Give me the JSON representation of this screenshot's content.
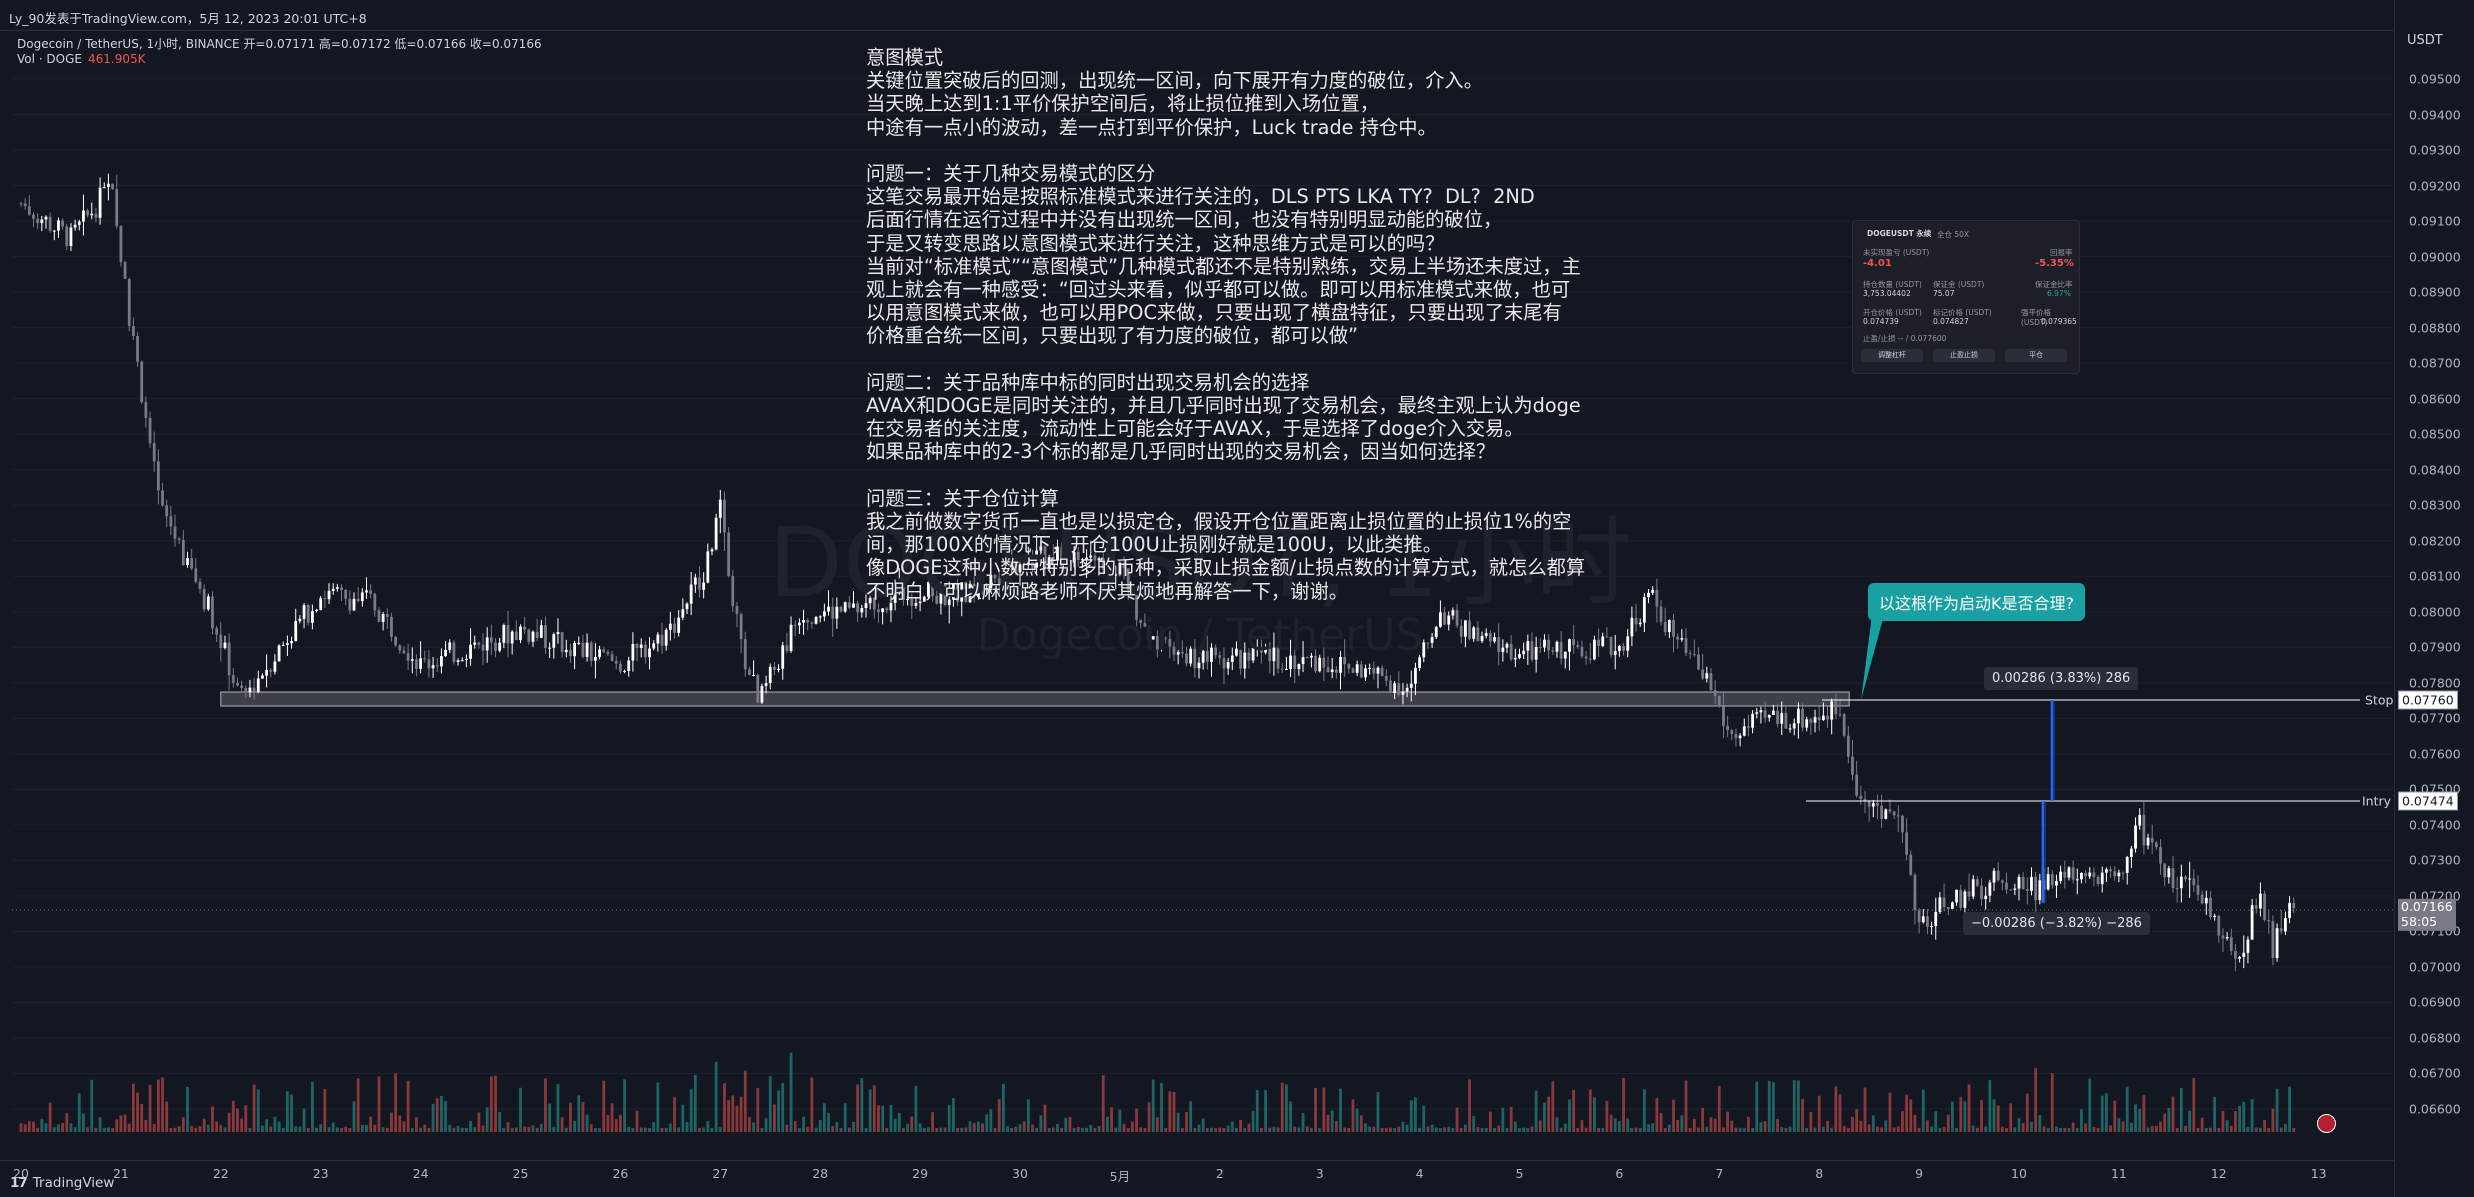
{
  "header": {
    "published_by": "Ly_90发表于TradingView.com，5月 12, 2023 20:01 UTC+8"
  },
  "legend": {
    "symbol_line": "Dogecoin / TetherUS, 1小时, BINANCE  开=0.07171  高=0.07172  低=0.07166  收=0.07166",
    "vol_label": "Vol · DOGE",
    "vol_value": "461.905K"
  },
  "watermark": {
    "line1": "DOGEUSDT, 1小时",
    "line2": "Dogecoin / TetherUS"
  },
  "note_text": "意图模式\n关键位置突破后的回测，出现统一区间，向下展开有力度的破位，介入。\n当天晚上达到1:1平价保护空间后，将止损位推到入场位置，\n中途有一点小的波动，差一点打到平价保护，Luck trade 持仓中。\n\n问题一：关于几种交易模式的区分\n这笔交易最开始是按照标准模式来进行关注的，DLS PTS LKA TY?  DL?  2ND\n后面行情在运行过程中并没有出现统一区间，也没有特别明显动能的破位，\n于是又转变思路以意图模式来进行关注，这种思维方式是可以的吗？\n当前对“标准模式”“意图模式”几种模式都还不是特别熟练，交易上半场还未度过，主\n观上就会有一种感受：“回过头来看，似乎都可以做。即可以用标准模式来做，也可\n以用意图模式来做，也可以用POC来做，只要出现了横盘特征，只要出现了末尾有\n价格重合统一区间，只要出现了有力度的破位，都可以做”\n\n问题二：关于品种库中标的同时出现交易机会的选择\nAVAX和DOGE是同时关注的，并且几乎同时出现了交易机会，最终主观上认为doge\n在交易者的关注度，流动性上可能会好于AVAX，于是选择了doge介入交易。\n如果品种库中的2-3个标的都是几乎同时出现的交易机会，因当如何选择？\n\n问题三：关于仓位计算\n我之前做数字货币一直也是以损定仓，假设开仓位置距离止损位置的止损位1%的空\n间，那100X的情况下，开仓100U止损刚好就是100U，以此类推。\n像DOGE这种小数点特别多的币种，采取止损金额/止损点数的计算方式，就怎么都算\n不明白，可以麻烦路老师不厌其烦地再解答一下，谢谢。",
  "callout": "以这根作为启动K是否合理?",
  "measure_up": "0.00286 (3.83%) 286",
  "measure_down": "−0.00286 (−3.82%) −286",
  "levels": {
    "stop_label": "Stop",
    "stop_price": "0.07760",
    "entry_label": "Intry",
    "entry_price": "0.07474",
    "last_price": "0.07166",
    "countdown": "58:05"
  },
  "yaxis": {
    "unit": "USDT",
    "ticks": [
      "0.09500",
      "0.09400",
      "0.09300",
      "0.09200",
      "0.09100",
      "0.09000",
      "0.08900",
      "0.08800",
      "0.08700",
      "0.08600",
      "0.08500",
      "0.08400",
      "0.08300",
      "0.08200",
      "0.08100",
      "0.08000",
      "0.07900",
      "0.07800",
      "0.07700",
      "0.07600",
      "0.07500",
      "0.07400",
      "0.07300",
      "0.07200",
      "0.07100",
      "0.07000",
      "0.06900",
      "0.06800",
      "0.06700",
      "0.06600"
    ]
  },
  "xaxis": {
    "ticks": [
      "20",
      "21",
      "22",
      "23",
      "24",
      "25",
      "26",
      "27",
      "28",
      "29",
      "30",
      "5月",
      "2",
      "3",
      "4",
      "5",
      "6",
      "7",
      "8",
      "9",
      "10",
      "11",
      "12",
      "13"
    ]
  },
  "footer": {
    "brand": "TradingView"
  },
  "panel": {
    "title": "DOGEUSDT 永续",
    "tag": "全仓 50X",
    "pnl_label": "未实现盈亏 (USDT)",
    "pnl_value": "-4.01",
    "roe_label": "回报率",
    "roe_value": "-5.35%",
    "size_label": "持仓数量 (USDT)",
    "size_value": "3,753.04402",
    "margin_label": "保证金 (USDT)",
    "margin_value": "75.07",
    "ratio_label": "保证金比率",
    "ratio_value": "6.97%",
    "entry_label": "开仓价格 (USDT)",
    "entry_value": "0.074739",
    "mark_label": "标记价格 (USDT)",
    "mark_value": "0.074827",
    "liq_label": "强平价格 (USDT)",
    "liq_value": "0.079365",
    "tpsl": "止盈/止损   -- / 0.077600",
    "btn1": "调整杠杆",
    "btn2": "止盈止损",
    "btn3": "平仓"
  },
  "colors": {
    "background": "#131722",
    "up": "#ffffff",
    "down": "#787b86",
    "vol_up": "#26a69a",
    "vol_down": "#ef5350",
    "accent": "#18a0a3",
    "measure_line": "#2962ff"
  },
  "chart_data": {
    "type": "candlestick",
    "symbol": "DOGEUSDT",
    "timeframe": "1小时",
    "ylim": [
      0.0655,
      0.0962
    ],
    "x_date_ticks": [
      "20",
      "21",
      "22",
      "23",
      "24",
      "25",
      "26",
      "27",
      "28",
      "29",
      "30",
      "5月",
      "2",
      "3",
      "4",
      "5",
      "6",
      "7",
      "8",
      "9",
      "10",
      "11",
      "12",
      "13"
    ],
    "price_path_keypoints": [
      {
        "date": "Apr 20",
        "price": 0.0915
      },
      {
        "date": "Apr 20.5",
        "price": 0.0905
      },
      {
        "date": "Apr 20.9",
        "price": 0.092
      },
      {
        "date": "Apr 21.1",
        "price": 0.088
      },
      {
        "date": "Apr 21.4",
        "price": 0.083
      },
      {
        "date": "Apr 21.9",
        "price": 0.08
      },
      {
        "date": "Apr 22.2",
        "price": 0.0775
      },
      {
        "date": "Apr 22.6",
        "price": 0.079
      },
      {
        "date": "Apr 23.0",
        "price": 0.0805
      },
      {
        "date": "Apr 23.5",
        "price": 0.0803
      },
      {
        "date": "Apr 24.0",
        "price": 0.0785
      },
      {
        "date": "Apr 24.5",
        "price": 0.079
      },
      {
        "date": "Apr 25.0",
        "price": 0.0795
      },
      {
        "date": "Apr 25.5",
        "price": 0.079
      },
      {
        "date": "Apr 26.0",
        "price": 0.0785
      },
      {
        "date": "Apr 26.5",
        "price": 0.0795
      },
      {
        "date": "Apr 26.9",
        "price": 0.0815
      },
      {
        "date": "Apr 27.0",
        "price": 0.083
      },
      {
        "date": "Apr 27.2",
        "price": 0.079
      },
      {
        "date": "Apr 27.4",
        "price": 0.0775
      },
      {
        "date": "Apr 27.8",
        "price": 0.08
      },
      {
        "date": "Apr 28.3",
        "price": 0.08
      },
      {
        "date": "Apr 28.8",
        "price": 0.0805
      },
      {
        "date": "Apr 29.5",
        "price": 0.0805
      },
      {
        "date": "Apr 30.0",
        "price": 0.0815
      },
      {
        "date": "Apr 30.6",
        "price": 0.0815
      },
      {
        "date": "May 1.0",
        "price": 0.0813
      },
      {
        "date": "May 1.3",
        "price": 0.079
      },
      {
        "date": "May 1.8",
        "price": 0.0787
      },
      {
        "date": "May 2.5",
        "price": 0.0787
      },
      {
        "date": "May 3.0",
        "price": 0.0786
      },
      {
        "date": "May 3.5",
        "price": 0.0783
      },
      {
        "date": "May 3.9",
        "price": 0.0778
      },
      {
        "date": "May 4.2",
        "price": 0.08
      },
      {
        "date": "May 4.6",
        "price": 0.0792
      },
      {
        "date": "May 5.0",
        "price": 0.0788
      },
      {
        "date": "May 5.5",
        "price": 0.079
      },
      {
        "date": "May 6.0",
        "price": 0.079
      },
      {
        "date": "May 6.3",
        "price": 0.0805
      },
      {
        "date": "May 6.6",
        "price": 0.079
      },
      {
        "date": "May 6.9",
        "price": 0.078
      },
      {
        "date": "May 7.1",
        "price": 0.0765
      },
      {
        "date": "May 7.5",
        "price": 0.077
      },
      {
        "date": "May 7.9",
        "price": 0.077
      },
      {
        "date": "May 8.2",
        "price": 0.0773
      },
      {
        "date": "May 8.4",
        "price": 0.0748
      },
      {
        "date": "May 8.8",
        "price": 0.0742
      },
      {
        "date": "May 9.0",
        "price": 0.0712
      },
      {
        "date": "May 9.3",
        "price": 0.0718
      },
      {
        "date": "May 9.8",
        "price": 0.0725
      },
      {
        "date": "May 10.2",
        "price": 0.0722
      },
      {
        "date": "May 10.6",
        "price": 0.0728
      },
      {
        "date": "May 11.0",
        "price": 0.0725
      },
      {
        "date": "May 11.2",
        "price": 0.074
      },
      {
        "date": "May 11.5",
        "price": 0.0725
      },
      {
        "date": "May 11.8",
        "price": 0.072
      },
      {
        "date": "May 12.0",
        "price": 0.0712
      },
      {
        "date": "May 12.2",
        "price": 0.07
      },
      {
        "date": "May 12.4",
        "price": 0.0722
      },
      {
        "date": "May 12.55",
        "price": 0.0705
      },
      {
        "date": "May 12.7",
        "price": 0.0718
      },
      {
        "date": "May 12.75",
        "price": 0.07166
      }
    ],
    "support_zone": {
      "from_date": "Apr 22",
      "to_date": "May 8.3",
      "top": 0.0776,
      "bottom": 0.0772
    },
    "stop_level": 0.0776,
    "entry_level": 0.07474,
    "last": 0.07166
  }
}
